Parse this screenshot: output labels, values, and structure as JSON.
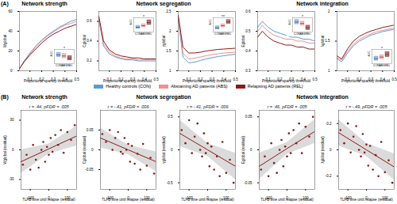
{
  "figure": {
    "panels": [
      {
        "label": "(A)",
        "headings": [
          "Network strength",
          "Network segregation",
          "Network integration"
        ]
      },
      {
        "label": "(B)",
        "headings": [
          "Network strength",
          "Network segregation",
          "Network integration"
        ]
      }
    ]
  },
  "chart_data": [
    {
      "type": "line",
      "x_label": "Proportional sparsity threshold",
      "y_label": "Wglobal",
      "x": [
        0.01,
        0.05,
        0.1,
        0.15,
        0.2,
        0.25,
        0.3,
        0.35,
        0.4,
        0.45,
        0.5
      ],
      "xlim": [
        0.01,
        0.5
      ],
      "xticks": [
        0.1,
        0.2,
        0.3,
        0.4,
        0.5
      ],
      "ylim": [
        0,
        60
      ],
      "yticks": [
        0,
        20,
        40,
        60
      ],
      "series": [
        {
          "name": "Healthy controls (CON)",
          "color": "#5b9bd5",
          "values": [
            2,
            10,
            18,
            25,
            31,
            36,
            40,
            44,
            47,
            50,
            52
          ]
        },
        {
          "name": "Abstaining AD patients (ABS)",
          "color": "#f09090",
          "values": [
            2,
            9,
            17,
            24,
            30,
            35,
            39,
            43,
            46,
            48,
            50
          ]
        },
        {
          "name": "Relapsing AD patients (REL)",
          "color": "#8b1a1a",
          "values": [
            2,
            9,
            16,
            22,
            28,
            33,
            37,
            40,
            43,
            45,
            47
          ]
        }
      ],
      "inset": {
        "type": "box",
        "y_label": "AUC",
        "categories": [
          "CON",
          "ABS",
          "REL"
        ],
        "median": [
          16,
          15.5,
          14.5
        ],
        "q1": [
          15,
          14.5,
          13.5
        ],
        "q3": [
          17,
          16.5,
          15.5
        ],
        "ylim": [
          12,
          18.5
        ],
        "tick_labels": "x",
        "annotations": [
          "*"
        ]
      }
    },
    {
      "type": "line",
      "x_label": "Proportional sparsity threshold",
      "y_label": "Cglobal",
      "x": [
        0.01,
        0.05,
        0.1,
        0.15,
        0.2,
        0.25,
        0.3,
        0.35,
        0.4,
        0.45,
        0.5
      ],
      "xlim": [
        0.01,
        0.5
      ],
      "xticks": [
        0.1,
        0.2,
        0.3,
        0.4,
        0.5
      ],
      "ylim": [
        0.1,
        0.7
      ],
      "yticks": [
        0.2,
        0.4,
        0.6
      ],
      "series": [
        {
          "name": "Healthy controls (CON)",
          "color": "#5b9bd5",
          "values": [
            0.62,
            0.35,
            0.27,
            0.24,
            0.22,
            0.21,
            0.21,
            0.2,
            0.2,
            0.2,
            0.2
          ]
        },
        {
          "name": "Abstaining AD patients (ABS)",
          "color": "#f09090",
          "values": [
            0.63,
            0.37,
            0.29,
            0.25,
            0.23,
            0.22,
            0.22,
            0.21,
            0.21,
            0.21,
            0.21
          ]
        },
        {
          "name": "Relapsing AD patients (REL)",
          "color": "#8b1a1a",
          "values": [
            0.65,
            0.4,
            0.31,
            0.27,
            0.25,
            0.24,
            0.23,
            0.23,
            0.22,
            0.22,
            0.22
          ]
        }
      ],
      "inset": {
        "type": "box",
        "y_label": "AUC",
        "categories": [
          "CON",
          "ABS",
          "REL"
        ],
        "median": [
          0.2,
          0.21,
          0.23
        ],
        "q1": [
          0.19,
          0.2,
          0.215
        ],
        "q3": [
          0.21,
          0.22,
          0.245
        ],
        "ylim": [
          0.17,
          0.26
        ],
        "tick_labels": "x",
        "annotations": [
          "*"
        ]
      }
    },
    {
      "type": "line",
      "x_label": "Proportional sparsity threshold",
      "y_label": "γglobal",
      "x": [
        0.01,
        0.05,
        0.1,
        0.15,
        0.2,
        0.25,
        0.3,
        0.35,
        0.4,
        0.45,
        0.5
      ],
      "xlim": [
        0.01,
        0.5
      ],
      "xticks": [
        0.1,
        0.2,
        0.3,
        0.4,
        0.5
      ],
      "ylim": [
        1,
        2.5
      ],
      "yticks": [
        1,
        1.5,
        2,
        2.5
      ],
      "series": [
        {
          "name": "Healthy controls (CON)",
          "color": "#5b9bd5",
          "values": [
            2.3,
            1.35,
            1.2,
            1.22,
            1.26,
            1.3,
            1.33,
            1.36,
            1.38,
            1.4,
            1.42
          ]
        },
        {
          "name": "Abstaining AD patients (ABS)",
          "color": "#f09090",
          "values": [
            2.35,
            1.45,
            1.3,
            1.32,
            1.35,
            1.38,
            1.41,
            1.43,
            1.45,
            1.46,
            1.47
          ]
        },
        {
          "name": "Relapsing AD patients (REL)",
          "color": "#8b1a1a",
          "values": [
            2.4,
            1.6,
            1.45,
            1.45,
            1.47,
            1.5,
            1.52,
            1.54,
            1.55,
            1.56,
            1.57
          ]
        }
      ],
      "inset": {
        "type": "box",
        "y_label": "AUC",
        "categories": [
          "CON",
          "ABS",
          "REL"
        ],
        "median": [
          1.33,
          1.4,
          1.52
        ],
        "q1": [
          1.28,
          1.35,
          1.46
        ],
        "q3": [
          1.38,
          1.45,
          1.58
        ],
        "ylim": [
          1.2,
          1.65
        ],
        "tick_labels": "x",
        "annotations": [
          "**"
        ]
      }
    },
    {
      "type": "line",
      "x_label": "Proportional sparsity threshold",
      "y_label": "Eglobal",
      "x": [
        0.01,
        0.05,
        0.1,
        0.15,
        0.2,
        0.25,
        0.3,
        0.35,
        0.4,
        0.45,
        0.5
      ],
      "xlim": [
        0.01,
        0.5
      ],
      "xticks": [
        0.1,
        0.2,
        0.3,
        0.4,
        0.5
      ],
      "ylim": [
        0.3,
        0.6
      ],
      "yticks": [
        0.3,
        0.4,
        0.5,
        0.6
      ],
      "series": [
        {
          "name": "Healthy controls (CON)",
          "color": "#5b9bd5",
          "values": [
            0.52,
            0.55,
            0.52,
            0.5,
            0.49,
            0.48,
            0.47,
            0.47,
            0.46,
            0.46,
            0.45
          ]
        },
        {
          "name": "Abstaining AD patients (ABS)",
          "color": "#f09090",
          "values": [
            0.5,
            0.53,
            0.5,
            0.48,
            0.47,
            0.46,
            0.46,
            0.45,
            0.45,
            0.44,
            0.44
          ]
        },
        {
          "name": "Relapsing AD patients (REL)",
          "color": "#8b1a1a",
          "values": [
            0.47,
            0.5,
            0.47,
            0.45,
            0.44,
            0.43,
            0.43,
            0.42,
            0.42,
            0.41,
            0.41
          ]
        }
      ],
      "inset": {
        "type": "box",
        "y_label": "AUC",
        "categories": [
          "CON",
          "ABS",
          "REL"
        ],
        "median": [
          0.47,
          0.46,
          0.43
        ],
        "q1": [
          0.455,
          0.445,
          0.415
        ],
        "q3": [
          0.485,
          0.475,
          0.445
        ],
        "ylim": [
          0.4,
          0.5
        ],
        "tick_labels": "x",
        "annotations": [
          "*"
        ]
      }
    },
    {
      "type": "line",
      "x_label": "Proportional sparsity threshold",
      "y_label": "λglobal",
      "x": [
        0.01,
        0.05,
        0.1,
        0.15,
        0.2,
        0.25,
        0.3,
        0.35,
        0.4,
        0.45,
        0.5
      ],
      "xlim": [
        0.01,
        0.5
      ],
      "xticks": [
        0.1,
        0.2,
        0.3,
        0.4,
        0.5
      ],
      "ylim": [
        1,
        2
      ],
      "yticks": [
        1,
        1.5,
        2
      ],
      "series": [
        {
          "name": "Healthy controls (CON)",
          "color": "#5b9bd5",
          "values": [
            1.2,
            1.15,
            1.3,
            1.42,
            1.5,
            1.55,
            1.6,
            1.63,
            1.66,
            1.68,
            1.7
          ]
        },
        {
          "name": "Abstaining AD patients (ABS)",
          "color": "#f09090",
          "values": [
            1.22,
            1.18,
            1.33,
            1.45,
            1.53,
            1.58,
            1.62,
            1.66,
            1.68,
            1.7,
            1.72
          ]
        },
        {
          "name": "Relapsing AD patients (REL)",
          "color": "#8b1a1a",
          "values": [
            1.25,
            1.2,
            1.37,
            1.5,
            1.58,
            1.63,
            1.67,
            1.7,
            1.73,
            1.75,
            1.77
          ]
        }
      ],
      "inset": {
        "type": "box",
        "y_label": "AUC",
        "categories": [
          "CON",
          "ABS",
          "REL"
        ],
        "median": [
          1.52,
          1.55,
          1.6
        ],
        "q1": [
          1.48,
          1.51,
          1.55
        ],
        "q3": [
          1.56,
          1.59,
          1.65
        ],
        "ylim": [
          1.42,
          1.7
        ],
        "tick_labels": "x",
        "annotations": [
          "*"
        ]
      }
    },
    {
      "type": "scatter",
      "title": "r = .44, pFDR = .005",
      "x_label": "TLFB time until relapse (residual)",
      "y_label": "Wglobal (residual)",
      "color": "#8b1a1a",
      "xlim": [
        -150,
        150
      ],
      "xticks": [
        -100,
        0,
        100
      ],
      "ylim": [
        -40,
        40
      ],
      "yticks": [
        -30,
        0,
        30
      ],
      "x": [
        -140,
        -120,
        -100,
        -85,
        -70,
        -55,
        -40,
        -30,
        -20,
        -10,
        0,
        10,
        20,
        35,
        50,
        65,
        80,
        100,
        120,
        140
      ],
      "y": [
        -15,
        -5,
        -20,
        5,
        -10,
        -18,
        0,
        8,
        -12,
        3,
        -5,
        12,
        -2,
        15,
        5,
        20,
        -3,
        18,
        10,
        25
      ],
      "trend": {
        "x": [
          -150,
          0,
          150
        ],
        "y": [
          -12,
          1,
          14
        ],
        "lower": [
          -24,
          -4,
          4
        ],
        "upper": [
          0,
          6,
          24
        ]
      }
    },
    {
      "type": "scatter",
      "title": "r = -.41, pFDR = .006",
      "x_label": "TLFB time until relapse (residual)",
      "y_label": "Cglobal (residual)",
      "color": "#8b1a1a",
      "xlim": [
        -150,
        150
      ],
      "xticks": [
        -100,
        0,
        100
      ],
      "ylim": [
        -0.1,
        0.1
      ],
      "yticks": [
        -0.05,
        0,
        0.05
      ],
      "x": [
        -140,
        -120,
        -100,
        -85,
        -70,
        -55,
        -40,
        -30,
        -20,
        -10,
        0,
        10,
        20,
        35,
        50,
        65,
        80,
        100,
        120,
        140
      ],
      "y": [
        0.04,
        0.02,
        0.05,
        0.0,
        0.03,
        0.045,
        -0.005,
        -0.01,
        0.03,
        0.0,
        0.015,
        -0.03,
        0.01,
        -0.035,
        -0.01,
        -0.05,
        0.015,
        -0.04,
        -0.02,
        -0.06
      ],
      "trend": {
        "x": [
          -150,
          0,
          150
        ],
        "y": [
          0.03,
          0.0,
          -0.03
        ],
        "lower": [
          0.005,
          -0.012,
          -0.055
        ],
        "upper": [
          0.055,
          0.012,
          -0.005
        ]
      }
    },
    {
      "type": "scatter",
      "title": "r = -.41, pFDR = .006",
      "x_label": "TLFB time until relapse (residual)",
      "y_label": "γglobal (residual)",
      "color": "#8b1a1a",
      "xlim": [
        -150,
        150
      ],
      "xticks": [
        -100,
        0,
        100
      ],
      "ylim": [
        -0.6,
        0.6
      ],
      "yticks": [
        -0.5,
        0,
        0.5
      ],
      "x": [
        -140,
        -120,
        -100,
        -85,
        -70,
        -55,
        -40,
        -30,
        -20,
        -10,
        0,
        10,
        20,
        35,
        50,
        65,
        80,
        100,
        120,
        140
      ],
      "y": [
        0.3,
        0.1,
        0.45,
        -0.05,
        0.2,
        0.4,
        0.0,
        -0.1,
        0.25,
        -0.05,
        0.1,
        -0.25,
        0.05,
        -0.3,
        -0.1,
        -0.4,
        0.12,
        -0.35,
        -0.15,
        -0.5
      ],
      "trend": {
        "x": [
          -150,
          0,
          150
        ],
        "y": [
          0.25,
          0.0,
          -0.25
        ],
        "lower": [
          0.05,
          -0.1,
          -0.45
        ],
        "upper": [
          0.45,
          0.1,
          -0.05
        ]
      }
    },
    {
      "type": "scatter",
      "title": "r = .46, pFDR = .005",
      "x_label": "TLFB time until relapse (residual)",
      "y_label": "Eglobal (residual)",
      "color": "#8b1a1a",
      "xlim": [
        -150,
        150
      ],
      "xticks": [
        -100,
        0,
        100
      ],
      "ylim": [
        -0.06,
        0.06
      ],
      "yticks": [
        -0.05,
        0,
        0.05
      ],
      "x": [
        -140,
        -120,
        -100,
        -85,
        -70,
        -55,
        -40,
        -30,
        -20,
        -10,
        0,
        10,
        20,
        35,
        50,
        65,
        80,
        100,
        120,
        140
      ],
      "y": [
        -0.03,
        -0.01,
        -0.04,
        0.01,
        -0.02,
        -0.035,
        0.0,
        0.015,
        -0.025,
        0.005,
        -0.01,
        0.025,
        -0.005,
        0.03,
        0.01,
        0.04,
        -0.005,
        0.035,
        0.02,
        0.05
      ],
      "trend": {
        "x": [
          -150,
          0,
          150
        ],
        "y": [
          -0.025,
          0.002,
          0.028
        ],
        "lower": [
          -0.045,
          -0.007,
          0.01
        ],
        "upper": [
          -0.005,
          0.011,
          0.046
        ]
      }
    },
    {
      "type": "scatter",
      "title": "r = -.49, pFDR = .005",
      "x_label": "TLFB time until relapse (residual)",
      "y_label": "λglobal (residual)",
      "color": "#8b1a1a",
      "xlim": [
        -150,
        150
      ],
      "xticks": [
        -100,
        0,
        100
      ],
      "ylim": [
        -0.3,
        0.3
      ],
      "yticks": [
        -0.2,
        0,
        0.2
      ],
      "x": [
        -140,
        -120,
        -100,
        -85,
        -70,
        -55,
        -40,
        -30,
        -20,
        -10,
        0,
        10,
        20,
        35,
        50,
        65,
        80,
        100,
        120,
        140
      ],
      "y": [
        0.15,
        0.05,
        0.2,
        -0.02,
        0.1,
        0.18,
        0.0,
        -0.05,
        0.12,
        -0.02,
        0.04,
        -0.12,
        0.03,
        -0.15,
        -0.04,
        -0.2,
        0.06,
        -0.17,
        -0.08,
        -0.25
      ],
      "trend": {
        "x": [
          -150,
          0,
          150
        ],
        "y": [
          0.13,
          0.0,
          -0.13
        ],
        "lower": [
          0.03,
          -0.05,
          -0.23
        ],
        "upper": [
          0.23,
          0.05,
          -0.03
        ]
      }
    }
  ]
}
